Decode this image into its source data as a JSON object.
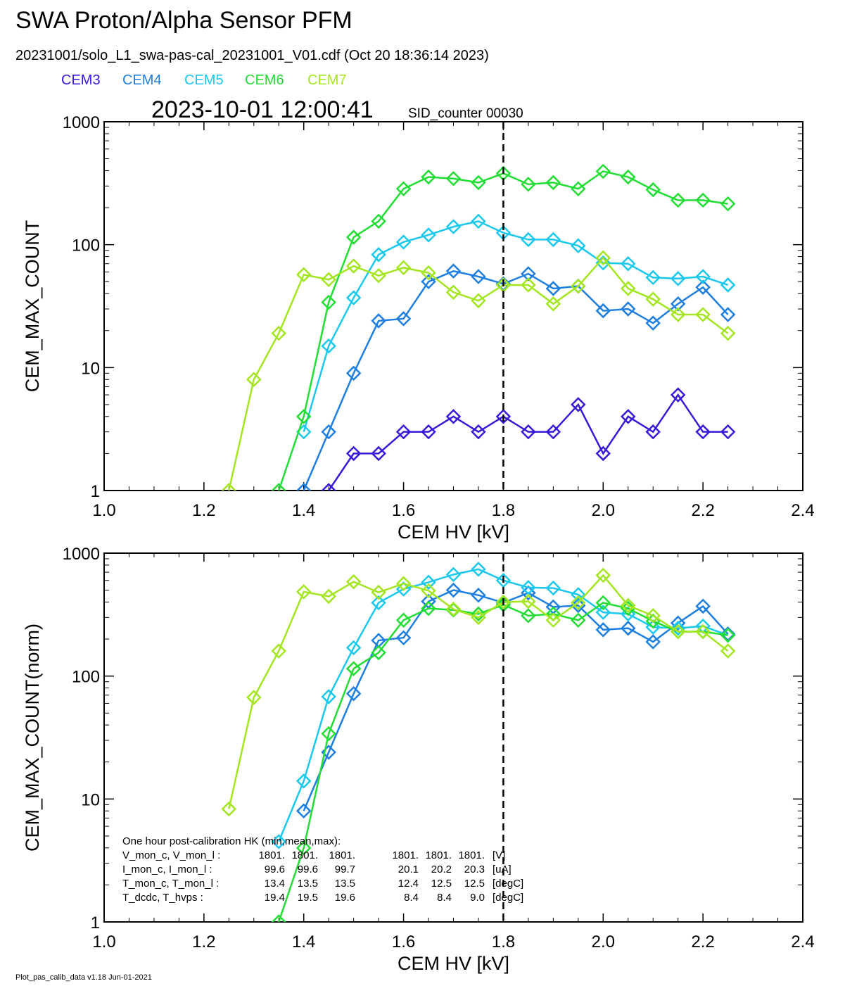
{
  "header": {
    "title": "SWA Proton/Alpha Sensor PFM",
    "file_info": "20231001/solo_L1_swa-pas-cal_20231001_V01.cdf  (Oct 20 18:36:14 2023)",
    "timestamp": "2023-10-01 12:00:41",
    "sid_counter": "SID_counter 00030"
  },
  "legend": [
    {
      "name": "CEM3",
      "color": "#3a18d8"
    },
    {
      "name": "CEM4",
      "color": "#1e7fe0"
    },
    {
      "name": "CEM5",
      "color": "#1ac8ee"
    },
    {
      "name": "CEM6",
      "color": "#22dd33"
    },
    {
      "name": "CEM7",
      "color": "#a3e620"
    }
  ],
  "hk_box": {
    "title": "One hour post-calibration HK (min,mean,max):",
    "rows": [
      {
        "label": "V_mon_c, V_mon_l :",
        "v1": "1801.",
        "v2": "1801.",
        "v3": "1801.",
        "v4": "1801.",
        "v5": "1801.",
        "v6": "1801.",
        "unit": "[V]"
      },
      {
        "label": "I_mon_c,  I_mon_l :",
        "v1": "99.6",
        "v2": "99.6",
        "v3": "99.7",
        "v4": "20.1",
        "v5": "20.2",
        "v6": "20.3",
        "unit": "[uA]"
      },
      {
        "label": "T_mon_c, T_mon_l :",
        "v1": "13.4",
        "v2": "13.5",
        "v3": "13.5",
        "v4": "12.4",
        "v5": "12.5",
        "v6": "12.5",
        "unit": "[degC]"
      },
      {
        "label": "T_dcdc,    T_hvps :",
        "v1": "19.4",
        "v2": "19.5",
        "v3": "19.6",
        "v4": "8.4",
        "v5": "8.4",
        "v6": "9.0",
        "unit": "[degC]"
      }
    ]
  },
  "footer": {
    "version": "Plot_pas_calib_data v1.18 Jun-01-2021"
  },
  "chart_data": [
    {
      "type": "line",
      "ylabel": "CEM_MAX_COUNT",
      "xlabel": "CEM HV [kV]",
      "xlim": [
        1.0,
        2.4
      ],
      "ylim": [
        1,
        1000
      ],
      "yscale": "log",
      "xticks": [
        "1.0",
        "1.2",
        "1.4",
        "1.6",
        "1.8",
        "2.0",
        "2.2",
        "2.4"
      ],
      "yticks": [
        "1",
        "10",
        "100",
        "1000"
      ],
      "vline_x": 1.8,
      "series": [
        {
          "name": "CEM3",
          "color": "#3a18d8",
          "x": [
            1.45,
            1.5,
            1.55,
            1.6,
            1.65,
            1.7,
            1.75,
            1.8,
            1.85,
            1.9,
            1.95,
            2.0,
            2.05,
            2.1,
            2.15,
            2.2,
            2.25
          ],
          "y": [
            1,
            2,
            2,
            3,
            3,
            4,
            3,
            4,
            3,
            3,
            5,
            2,
            4,
            3,
            6,
            3,
            3
          ]
        },
        {
          "name": "CEM4",
          "color": "#1e7fe0",
          "x": [
            1.4,
            1.45,
            1.5,
            1.55,
            1.6,
            1.65,
            1.7,
            1.75,
            1.8,
            1.85,
            1.9,
            1.95,
            2.0,
            2.05,
            2.1,
            2.15,
            2.2,
            2.25
          ],
          "y": [
            1,
            3,
            9,
            24,
            25,
            50,
            61,
            55,
            48,
            58,
            44,
            46,
            29,
            30,
            23,
            33,
            45,
            27
          ]
        },
        {
          "name": "CEM5",
          "color": "#1ac8ee",
          "x": [
            1.4,
            1.45,
            1.5,
            1.55,
            1.6,
            1.65,
            1.7,
            1.75,
            1.8,
            1.85,
            1.9,
            1.95,
            2.0,
            2.05,
            2.1,
            2.15,
            2.2,
            2.25
          ],
          "y": [
            3,
            15,
            37,
            83,
            105,
            120,
            140,
            155,
            125,
            110,
            110,
            98,
            71,
            70,
            54,
            53,
            55,
            47
          ]
        },
        {
          "name": "CEM6",
          "color": "#22dd33",
          "x": [
            1.35,
            1.4,
            1.45,
            1.5,
            1.55,
            1.6,
            1.65,
            1.7,
            1.75,
            1.8,
            1.85,
            1.9,
            1.95,
            2.0,
            2.05,
            2.1,
            2.15,
            2.2,
            2.25
          ],
          "y": [
            1,
            4,
            34,
            115,
            155,
            285,
            355,
            345,
            320,
            380,
            310,
            320,
            285,
            395,
            355,
            280,
            230,
            230,
            215
          ]
        },
        {
          "name": "CEM7",
          "color": "#a3e620",
          "x": [
            1.25,
            1.3,
            1.35,
            1.4,
            1.45,
            1.5,
            1.55,
            1.6,
            1.65,
            1.7,
            1.75,
            1.8,
            1.85,
            1.9,
            1.95,
            2.0,
            2.05,
            2.1,
            2.15,
            2.2,
            2.25
          ],
          "y": [
            1,
            8,
            19,
            57,
            52,
            67,
            56,
            65,
            59,
            41,
            35,
            47,
            47,
            33,
            46,
            78,
            44,
            36,
            27,
            27,
            19
          ]
        }
      ]
    },
    {
      "type": "line",
      "ylabel": "CEM_MAX_COUNT(norm)",
      "xlabel": "CEM HV [kV]",
      "xlim": [
        1.0,
        2.4
      ],
      "ylim": [
        1,
        1000
      ],
      "yscale": "log",
      "xticks": [
        "1.0",
        "1.2",
        "1.4",
        "1.6",
        "1.8",
        "2.0",
        "2.2",
        "2.4"
      ],
      "yticks": [
        "1",
        "10",
        "100",
        "1000"
      ],
      "vline_x": 1.8,
      "series": [
        {
          "name": "CEM4",
          "color": "#1e7fe0",
          "x": [
            1.4,
            1.45,
            1.5,
            1.55,
            1.6,
            1.65,
            1.7,
            1.75,
            1.8,
            1.85,
            1.9,
            1.95,
            2.0,
            2.05,
            2.1,
            2.15,
            2.2,
            2.25
          ],
          "y": [
            8,
            24,
            72,
            195,
            205,
            405,
            500,
            455,
            395,
            475,
            365,
            375,
            238,
            245,
            190,
            270,
            370,
            220
          ]
        },
        {
          "name": "CEM5",
          "color": "#1ac8ee",
          "x": [
            1.35,
            1.4,
            1.45,
            1.5,
            1.55,
            1.6,
            1.65,
            1.7,
            1.75,
            1.8,
            1.85,
            1.9,
            1.95,
            2.0,
            2.05,
            2.1,
            2.15,
            2.2,
            2.25
          ],
          "y": [
            4.5,
            14,
            68,
            170,
            395,
            510,
            580,
            670,
            740,
            600,
            525,
            520,
            460,
            330,
            320,
            250,
            245,
            255,
            215
          ]
        },
        {
          "name": "CEM6",
          "color": "#22dd33",
          "x": [
            1.35,
            1.4,
            1.45,
            1.5,
            1.55,
            1.6,
            1.65,
            1.7,
            1.75,
            1.8,
            1.85,
            1.9,
            1.95,
            2.0,
            2.05,
            2.1,
            2.15,
            2.2,
            2.25
          ],
          "y": [
            1,
            4,
            34,
            115,
            155,
            285,
            355,
            345,
            320,
            380,
            310,
            320,
            285,
            395,
            355,
            280,
            230,
            230,
            215
          ]
        },
        {
          "name": "CEM7",
          "color": "#a3e620",
          "x": [
            1.25,
            1.3,
            1.35,
            1.4,
            1.45,
            1.5,
            1.55,
            1.6,
            1.65,
            1.7,
            1.75,
            1.8,
            1.85,
            1.9,
            1.95,
            2.0,
            2.05,
            2.1,
            2.15,
            2.2,
            2.25
          ],
          "y": [
            8.3,
            67,
            160,
            485,
            445,
            585,
            480,
            565,
            495,
            350,
            300,
            400,
            405,
            285,
            395,
            660,
            375,
            310,
            230,
            230,
            160
          ]
        }
      ]
    }
  ]
}
